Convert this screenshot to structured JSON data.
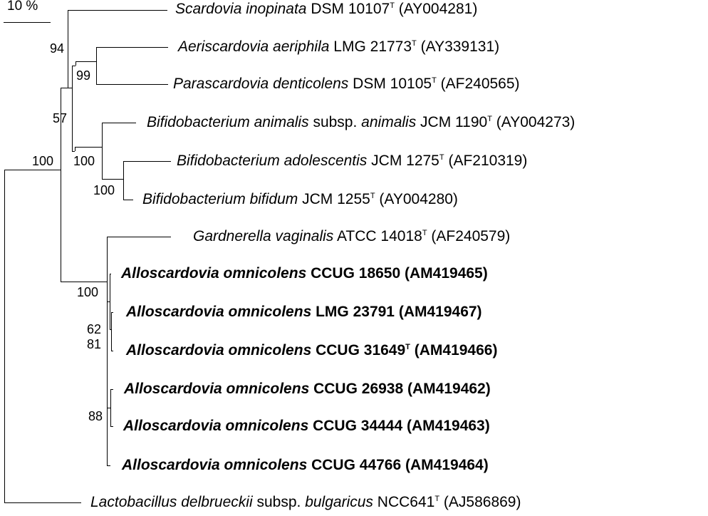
{
  "scale_bar": {
    "label": "10 %"
  },
  "taxa": [
    {
      "genus_species": "Scardovia inopinata",
      "subspecies_marker": "",
      "subspecies_name": "",
      "strain": "DSM 10107",
      "type_strain": true,
      "accession": "(AY004281)",
      "bold": false
    },
    {
      "genus_species": "Aeriscardovia aeriphila",
      "subspecies_marker": "",
      "subspecies_name": "",
      "strain": "LMG 21773",
      "type_strain": true,
      "accession": "(AY339131)",
      "bold": false
    },
    {
      "genus_species": "Parascardovia denticolens",
      "subspecies_marker": "",
      "subspecies_name": "",
      "strain": "DSM 10105",
      "type_strain": true,
      "accession": "(AF240565)",
      "bold": false
    },
    {
      "genus_species": "Bifidobacterium animalis",
      "subspecies_marker": "subsp.",
      "subspecies_name": "animalis",
      "strain": "JCM 1190",
      "type_strain": true,
      "accession": "(AY004273)",
      "bold": false
    },
    {
      "genus_species": "Bifidobacterium adolescentis",
      "subspecies_marker": "",
      "subspecies_name": "",
      "strain": "JCM 1275",
      "type_strain": true,
      "accession": "(AF210319)",
      "bold": false
    },
    {
      "genus_species": "Bifidobacterium bifidum",
      "subspecies_marker": "",
      "subspecies_name": "",
      "strain": "JCM 1255",
      "type_strain": true,
      "accession": "(AY004280)",
      "bold": false
    },
    {
      "genus_species": "Gardnerella vaginalis",
      "subspecies_marker": "",
      "subspecies_name": "",
      "strain": "ATCC 14018",
      "type_strain": true,
      "accession": "(AF240579)",
      "bold": false
    },
    {
      "genus_species": "Alloscardovia omnicolens",
      "subspecies_marker": "",
      "subspecies_name": "",
      "strain": "CCUG 18650",
      "type_strain": false,
      "accession": "(AM419465)",
      "bold": true
    },
    {
      "genus_species": "Alloscardovia omnicolens",
      "subspecies_marker": "",
      "subspecies_name": "",
      "strain": "LMG 23791",
      "type_strain": false,
      "accession": "(AM419467)",
      "bold": true
    },
    {
      "genus_species": "Alloscardovia omnicolens",
      "subspecies_marker": "",
      "subspecies_name": "",
      "strain": "CCUG 31649",
      "type_strain": true,
      "accession": "(AM419466)",
      "bold": true
    },
    {
      "genus_species": "Alloscardovia omnicolens",
      "subspecies_marker": "",
      "subspecies_name": "",
      "strain": "CCUG 26938",
      "type_strain": false,
      "accession": "(AM419462)",
      "bold": true
    },
    {
      "genus_species": "Alloscardovia omnicolens",
      "subspecies_marker": "",
      "subspecies_name": "",
      "strain": "CCUG 34444",
      "type_strain": false,
      "accession": "(AM419463)",
      "bold": true
    },
    {
      "genus_species": "Alloscardovia omnicolens",
      "subspecies_marker": "",
      "subspecies_name": "",
      "strain": "CCUG 44766",
      "type_strain": false,
      "accession": "(AM419464)",
      "bold": true
    },
    {
      "genus_species": "Lactobacillus delbrueckii",
      "subspecies_marker": "subsp.",
      "subspecies_name": "bulgaricus",
      "strain": "NCC641",
      "type_strain": true,
      "accession": "(AJ586869)",
      "bold": false
    }
  ],
  "bootstrap_values": [
    "94",
    "99",
    "57",
    "100",
    "100",
    "100",
    "100",
    "62",
    "81",
    "88"
  ]
}
